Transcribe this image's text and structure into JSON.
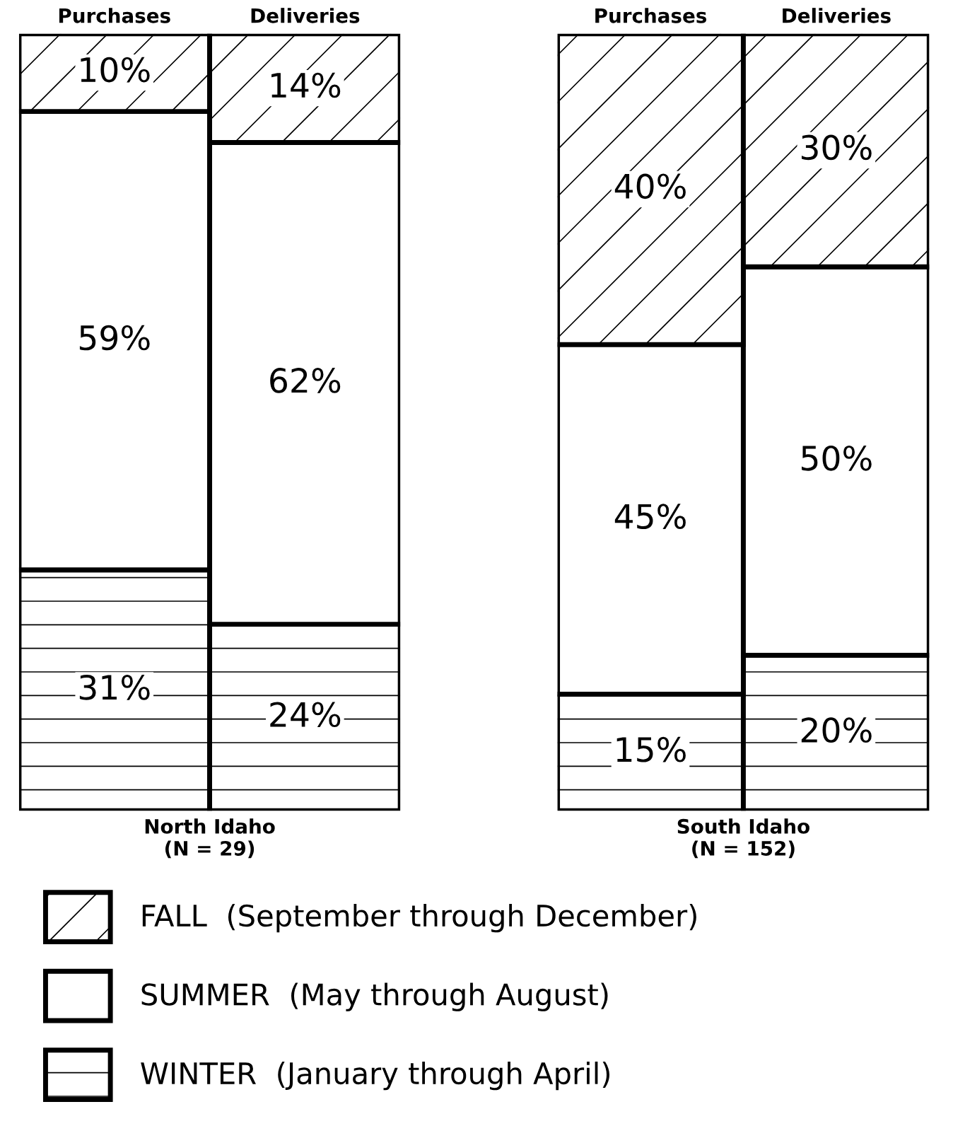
{
  "chart_data": [
    {
      "type": "bar",
      "stacked": true,
      "xlabel": "North Idaho\n(N = 29)",
      "categories": [
        "Purchases",
        "Deliveries"
      ],
      "ylim": [
        0,
        100
      ],
      "tick_labels": "x",
      "grid": false,
      "legend": "bottom",
      "series": [
        {
          "name": "WINTER  (January through April)",
          "color": "#ffffff",
          "values": [
            31,
            24
          ],
          "value_labels": [
            "31%",
            "24%"
          ]
        },
        {
          "name": "SUMMER  (May through August)",
          "color": "#ffffff",
          "values": [
            59,
            62
          ],
          "value_labels": [
            "59%",
            "62%"
          ]
        },
        {
          "name": "FALL  (September through December)",
          "color": "#ffffff",
          "values": [
            10,
            14
          ],
          "value_labels": [
            "10%",
            "14%"
          ]
        }
      ]
    },
    {
      "type": "bar",
      "stacked": true,
      "xlabel": "South Idaho\n(N = 152)",
      "categories": [
        "Purchases",
        "Deliveries"
      ],
      "ylim": [
        0,
        100
      ],
      "tick_labels": "x",
      "grid": false,
      "series": [
        {
          "color": "#ffffff",
          "values": [
            15,
            20
          ],
          "value_labels": [
            "15%",
            "20%"
          ]
        },
        {
          "color": "#ffffff",
          "values": [
            45,
            50
          ],
          "value_labels": [
            "45%",
            "50%"
          ]
        },
        {
          "color": "#ffffff",
          "values": [
            40,
            30
          ],
          "value_labels": [
            "40%",
            "30%"
          ]
        }
      ]
    }
  ]
}
